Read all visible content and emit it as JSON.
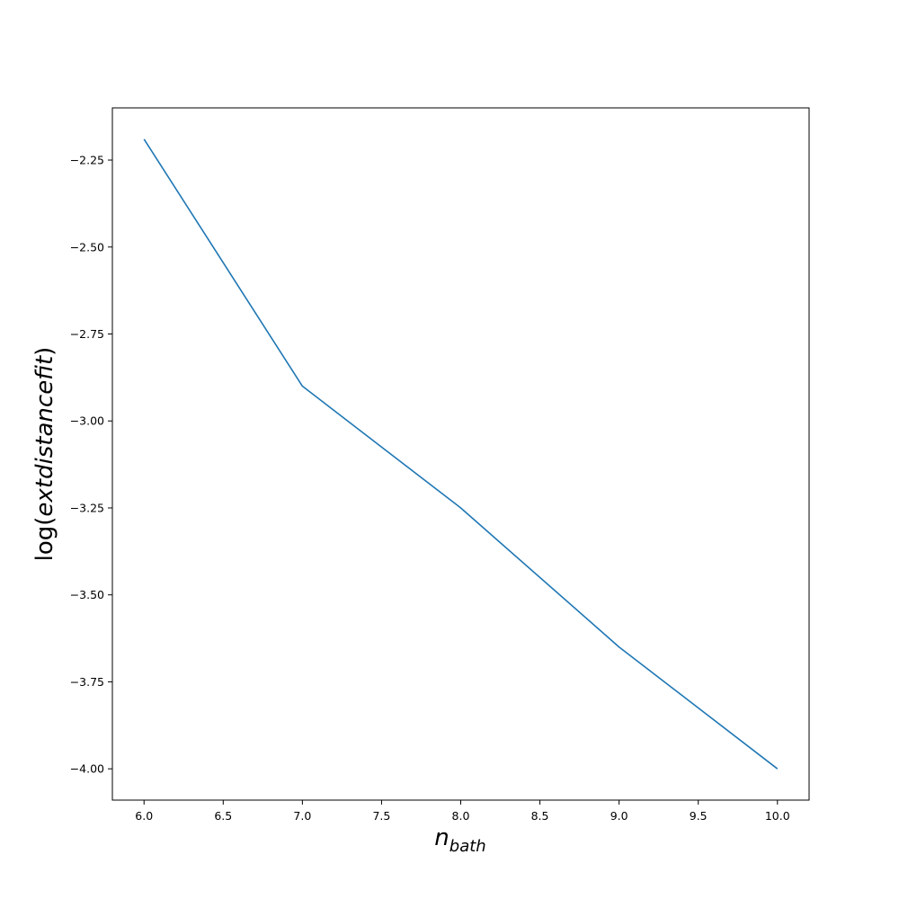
{
  "chart_data": {
    "type": "line",
    "title": "",
    "xlabel": {
      "base": "n",
      "sub": "bath"
    },
    "ylabel": {
      "prefix": "log(",
      "body": "extdistancefit",
      "suffix": ")"
    },
    "xlim": [
      5.8,
      10.2
    ],
    "ylim": [
      -4.09,
      -2.1
    ],
    "xticks": [
      6.0,
      6.5,
      7.0,
      7.5,
      8.0,
      8.5,
      9.0,
      9.5,
      10.0
    ],
    "xtick_labels": [
      "6.0",
      "6.5",
      "7.0",
      "7.5",
      "8.0",
      "8.5",
      "9.0",
      "9.5",
      "10.0"
    ],
    "yticks": [
      -2.25,
      -2.5,
      -2.75,
      -3.0,
      -3.25,
      -3.5,
      -3.75,
      -4.0
    ],
    "ytick_labels": [
      "−2.25",
      "−2.50",
      "−2.75",
      "−3.00",
      "−3.25",
      "−3.50",
      "−3.75",
      "−4.00"
    ],
    "grid": false,
    "series": [
      {
        "x": [
          6,
          7,
          8,
          9,
          10
        ],
        "y": [
          -2.19,
          -2.9,
          -3.25,
          -3.65,
          -4.0
        ],
        "color": "#1f77b4"
      }
    ]
  }
}
